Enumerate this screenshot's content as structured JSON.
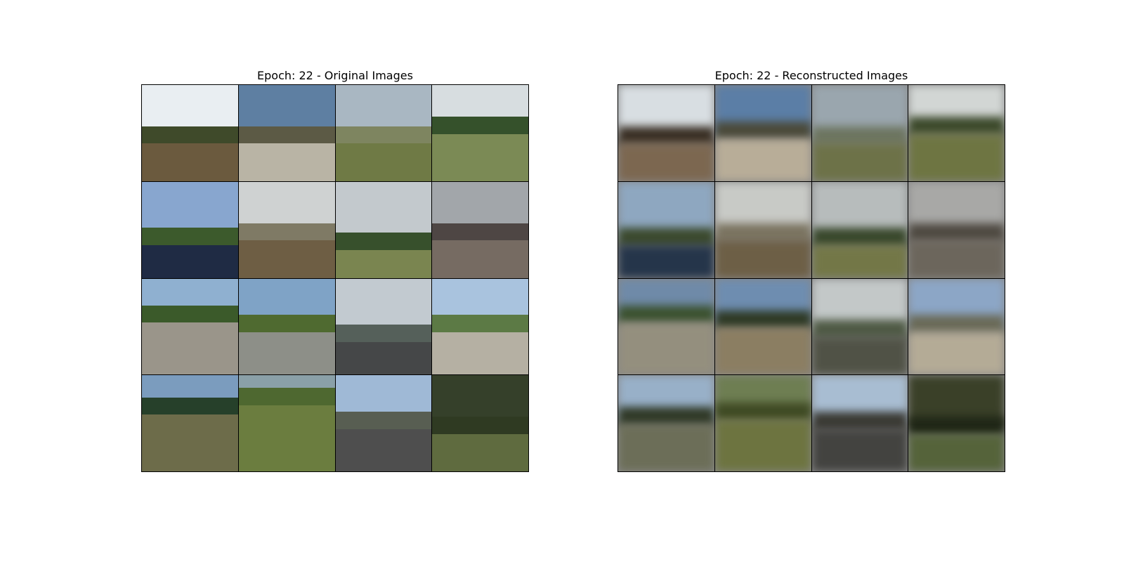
{
  "panels": {
    "original": {
      "title": "Epoch: 22 - Original Images",
      "tiles": [
        {
          "sky": "#e9eef2",
          "mid": "#3f4a2a",
          "ground": "#6b5a3e",
          "horizon": 0.55
        },
        {
          "sky": "#5e7fa2",
          "mid": "#5c5a45",
          "ground": "#b9b4a5",
          "horizon": 0.55
        },
        {
          "sky": "#a9b7c2",
          "mid": "#7e8560",
          "ground": "#6f7a45",
          "horizon": 0.55
        },
        {
          "sky": "#d7dde0",
          "mid": "#35512b",
          "ground": "#7b8a55",
          "horizon": 0.45
        },
        {
          "sky": "#88a6cf",
          "mid": "#3c5a2c",
          "ground": "#1f2b44",
          "horizon": 0.6
        },
        {
          "sky": "#cfd2d2",
          "mid": "#7f7a65",
          "ground": "#6e5e44",
          "horizon": 0.55
        },
        {
          "sky": "#c3c9cd",
          "mid": "#37502c",
          "ground": "#7a8550",
          "horizon": 0.65
        },
        {
          "sky": "#a2a6aa",
          "mid": "#4e4644",
          "ground": "#766b62",
          "horizon": 0.55
        },
        {
          "sky": "#8fb0d0",
          "mid": "#3b5a2a",
          "ground": "#9a958a",
          "horizon": 0.4
        },
        {
          "sky": "#7fa3c6",
          "mid": "#4f6a30",
          "ground": "#8d8f88",
          "horizon": 0.5
        },
        {
          "sky": "#c2cad0",
          "mid": "#55605a",
          "ground": "#454748",
          "horizon": 0.6
        },
        {
          "sky": "#a9c3de",
          "mid": "#5c7a45",
          "ground": "#b5b0a3",
          "horizon": 0.5
        },
        {
          "sky": "#7b9cbe",
          "mid": "#26402a",
          "ground": "#6d6c4a",
          "horizon": 0.35
        },
        {
          "sky": "#8aa0a8",
          "mid": "#4e6830",
          "ground": "#6b7d3f",
          "horizon": 0.25
        },
        {
          "sky": "#9fb9d6",
          "mid": "#585e52",
          "ground": "#4e4e4e",
          "horizon": 0.5
        },
        {
          "sky": "#35402a",
          "mid": "#2f3a22",
          "ground": "#5f6b3f",
          "horizon": 0.55
        }
      ]
    },
    "reconstructed": {
      "title": "Epoch: 22 - Reconstructed Images",
      "tiles": [
        {
          "sky": "#d8dee2",
          "mid": "#3a3025",
          "ground": "#7c6750",
          "horizon": 0.55
        },
        {
          "sky": "#5b7ea6",
          "mid": "#4b4a3a",
          "ground": "#b8ad98",
          "horizon": 0.5
        },
        {
          "sky": "#9aa6ae",
          "mid": "#6d7560",
          "ground": "#6d7248",
          "horizon": 0.55
        },
        {
          "sky": "#d2d6d4",
          "mid": "#3d4a2c",
          "ground": "#6e7542",
          "horizon": 0.45
        },
        {
          "sky": "#8ea7c0",
          "mid": "#3c4a2e",
          "ground": "#25354a",
          "horizon": 0.6
        },
        {
          "sky": "#c8cac6",
          "mid": "#7b7461",
          "ground": "#6d5f46",
          "horizon": 0.55
        },
        {
          "sky": "#b7bcbc",
          "mid": "#39482c",
          "ground": "#737747",
          "horizon": 0.6
        },
        {
          "sky": "#a8a8a6",
          "mid": "#4f4a42",
          "ground": "#6c665c",
          "horizon": 0.55
        },
        {
          "sky": "#6f8aa8",
          "mid": "#3c5230",
          "ground": "#948f7e",
          "horizon": 0.4
        },
        {
          "sky": "#6e8db0",
          "mid": "#2f3a26",
          "ground": "#8b7e62",
          "horizon": 0.45
        },
        {
          "sky": "#c3c8c8",
          "mid": "#4f5a45",
          "ground": "#505246",
          "horizon": 0.55
        },
        {
          "sky": "#8ca6c6",
          "mid": "#6a6a58",
          "ground": "#b4ab96",
          "horizon": 0.5
        },
        {
          "sky": "#98b0c8",
          "mid": "#313a28",
          "ground": "#6c6e58",
          "horizon": 0.45
        },
        {
          "sky": "#6e7e52",
          "mid": "#3f4a24",
          "ground": "#6d7440",
          "horizon": 0.4
        },
        {
          "sky": "#a8bdd2",
          "mid": "#3b3a34",
          "ground": "#434340",
          "horizon": 0.5
        },
        {
          "sky": "#3a4028",
          "mid": "#1f2616",
          "ground": "#55633a",
          "horizon": 0.55
        }
      ]
    }
  }
}
